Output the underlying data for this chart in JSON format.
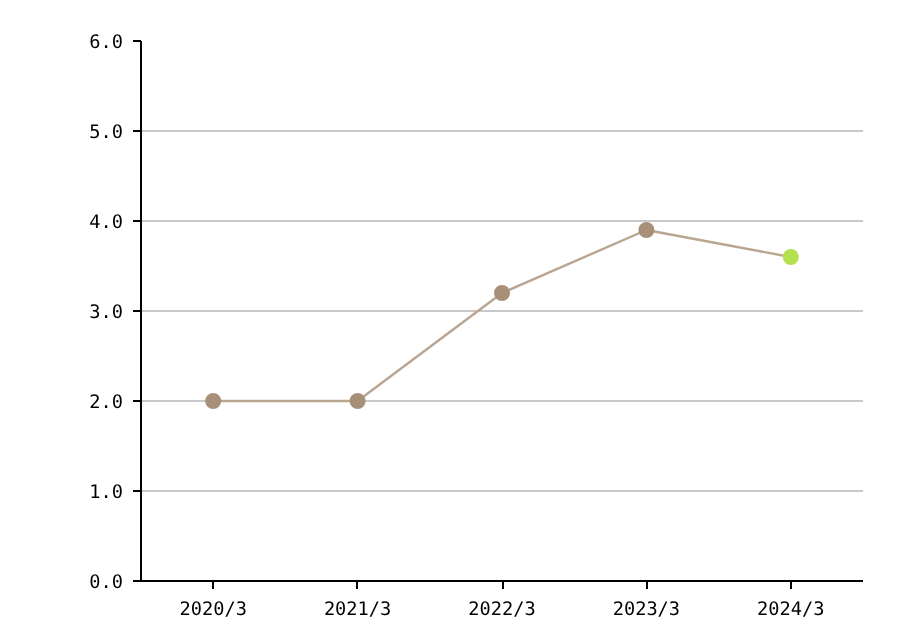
{
  "chart_data": {
    "type": "line",
    "categories": [
      "2020/3",
      "2021/3",
      "2022/3",
      "2023/3",
      "2024/3"
    ],
    "series": [
      {
        "color": "#b8a690",
        "colors": [
          "#a89078",
          "#a89078",
          "#a89078",
          "#a89078",
          "#b4e050"
        ],
        "values": [
          2.0,
          2.0,
          3.2,
          3.9,
          3.6
        ]
      }
    ],
    "ylim": [
      0,
      6
    ],
    "yticks": [
      {
        "value": 0,
        "label": "0.0"
      },
      {
        "value": 1,
        "label": "1.0"
      },
      {
        "value": 2,
        "label": "2.0"
      },
      {
        "value": 3,
        "label": "3.0"
      },
      {
        "value": 4,
        "label": "4.0"
      },
      {
        "value": 5,
        "label": "5.0"
      },
      {
        "value": 6,
        "label": "6.0"
      }
    ],
    "grid": "y",
    "marker": "circle",
    "line_style": "solid"
  }
}
